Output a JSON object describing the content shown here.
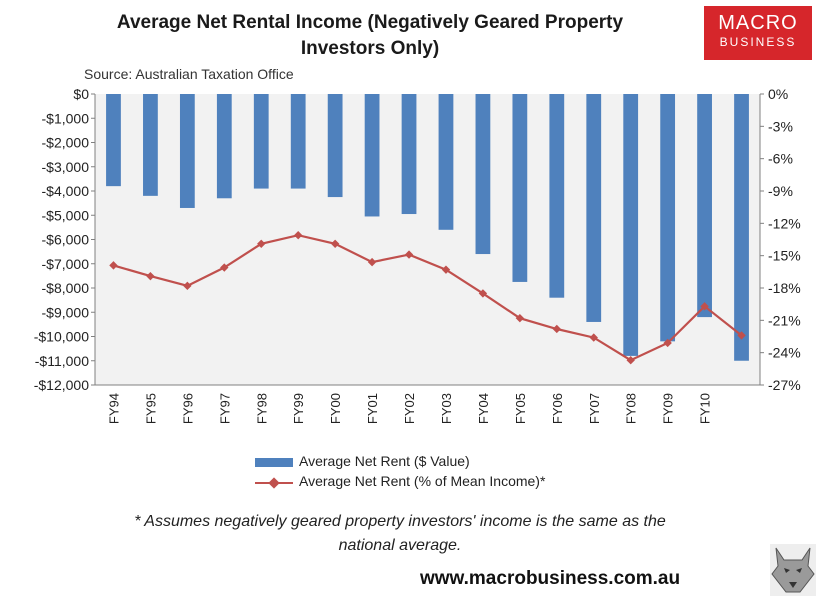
{
  "title_line1": "Average  Net Rental Income  (Negatively Geared Property",
  "title_line2": "Investors Only)",
  "source": "Source: Australian Taxation Office",
  "logo": {
    "line1": "MACRO",
    "line2": "BUSINESS",
    "color": "#d6262b"
  },
  "legend": {
    "bar_label": "Average Net Rent ($ Value)",
    "line_label": "Average Net Rent (% of Mean Income)*"
  },
  "footnote_line1": "* Assumes negatively geared property investors' income is the same as the",
  "footnote_line2": "national average.",
  "website": "www.macrobusiness.com.au",
  "colors": {
    "bar": "#4f81bd",
    "line": "#c0504d",
    "plot_bg": "#f2f2f2"
  },
  "chart_data": {
    "type": "bar+line",
    "title": "Average Net Rental Income (Negatively Geared Property Investors Only)",
    "categories": [
      "FY94",
      "FY95",
      "FY96",
      "FY97",
      "FY98",
      "FY99",
      "FY00",
      "FY01",
      "FY02",
      "FY03",
      "FY04",
      "FY05",
      "FY06",
      "FY07",
      "FY08",
      "FY09",
      "FY10",
      ""
    ],
    "series": [
      {
        "name": "Average Net Rent ($ Value)",
        "type": "bar",
        "axis": "left",
        "values": [
          -3800,
          -4200,
          -4700,
          -4300,
          -3900,
          -3900,
          -4250,
          -5050,
          -4950,
          -5600,
          -6600,
          -7750,
          -8400,
          -9400,
          -10800,
          -10200,
          -9200,
          -11000
        ]
      },
      {
        "name": "Average Net Rent (% of Mean Income)*",
        "type": "line",
        "axis": "right",
        "values": [
          -15.9,
          -16.9,
          -17.8,
          -16.1,
          -13.9,
          -13.1,
          -13.9,
          -15.6,
          -14.9,
          -16.3,
          -18.5,
          -20.8,
          -21.8,
          -22.6,
          -24.7,
          -23.1,
          -19.7,
          -22.4
        ]
      }
    ],
    "left_axis": {
      "min": -12000,
      "max": 0,
      "step": 1000,
      "tick_labels": [
        "$0",
        "-$1,000",
        "-$2,000",
        "-$3,000",
        "-$4,000",
        "-$5,000",
        "-$6,000",
        "-$7,000",
        "-$8,000",
        "-$9,000",
        "-$10,000",
        "-$11,000",
        "-$12,000"
      ]
    },
    "right_axis": {
      "min": -27,
      "max": 0,
      "step": 3,
      "tick_labels": [
        "0%",
        "-3%",
        "-6%",
        "-9%",
        "-12%",
        "-15%",
        "-18%",
        "-21%",
        "-24%",
        "-27%"
      ]
    },
    "grid": false
  }
}
